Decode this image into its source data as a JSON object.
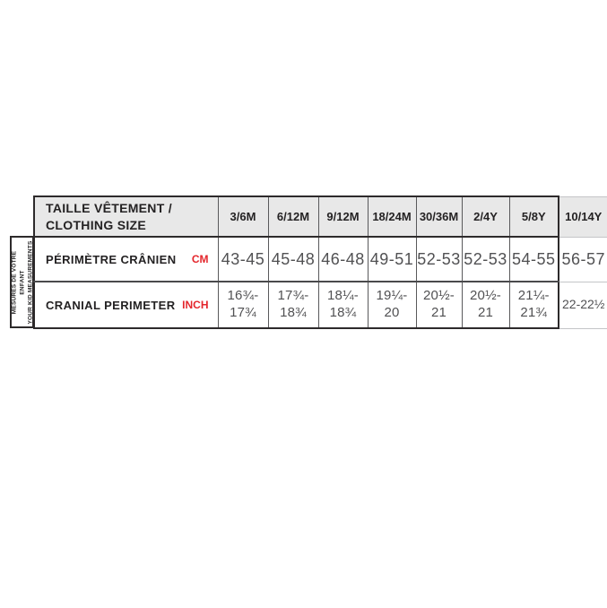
{
  "side_label": {
    "text": "MESURES DE VOTRE ENFANT\nYOUR KID MEASUREMENTS"
  },
  "table": {
    "title": "TAILLE VÊTEMENT /\nCLOTHING SIZE",
    "columns": [
      "3/6M",
      "6/12M",
      "9/12M",
      "18/24M",
      "30/36M",
      "2/4Y",
      "5/8Y",
      "10/14Y"
    ],
    "rows": [
      {
        "label": "PÉRIMÈTRE CRÂNIEN",
        "unit": "CM",
        "values": [
          "43-45",
          "45-48",
          "46-48",
          "49-51",
          "52-53",
          "52-53",
          "54-55",
          "56-57"
        ]
      },
      {
        "label": "CRANIAL PERIMETER",
        "unit": "INCH",
        "values": [
          "16¾-\n17¾",
          "17¾-\n18¾",
          "18¼-\n18¾",
          "19¼-\n20",
          "20½-\n21",
          "20½-\n21",
          "21¼-\n21¾",
          "22-22½"
        ]
      }
    ]
  },
  "colors": {
    "header_background": "#e8e8e8",
    "frame_border": "#2d2a2b",
    "inner_border": "#59595b",
    "light_border": "#c4c5c7",
    "unit_red": "#e4262c",
    "value_gray": "#515153",
    "label_black": "#242223"
  },
  "chart_data": {
    "type": "table",
    "title": "TAILLE VÊTEMENT / CLOTHING SIZE",
    "side_note": "MESURES DE VOTRE ENFANT / YOUR KID MEASUREMENTS",
    "columns": [
      "3/6M",
      "6/12M",
      "9/12M",
      "18/24M",
      "30/36M",
      "2/4Y",
      "5/8Y",
      "10/14Y"
    ],
    "rows": [
      {
        "label": "PÉRIMÈTRE CRÂNIEN",
        "unit": "CM",
        "values": [
          "43-45",
          "45-48",
          "46-48",
          "49-51",
          "52-53",
          "52-53",
          "54-55",
          "56-57"
        ]
      },
      {
        "label": "CRANIAL PERIMETER",
        "unit": "INCH",
        "values": [
          "16¾-17¾",
          "17¾-18¾",
          "18¼-18¾",
          "19¼-20",
          "20½-21",
          "20½-21",
          "21¼-21¾",
          "22-22½"
        ]
      }
    ]
  }
}
